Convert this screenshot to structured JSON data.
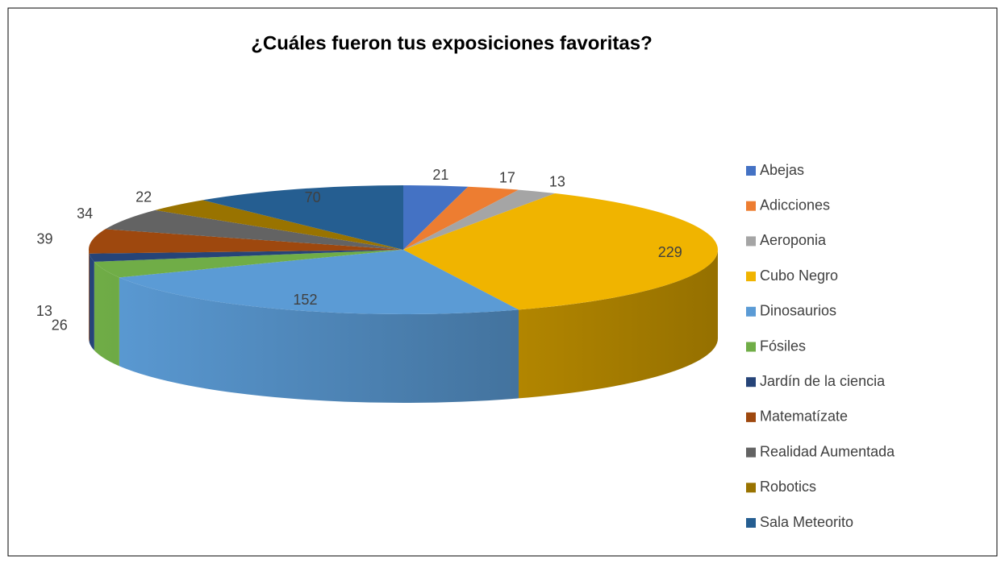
{
  "chart_data": {
    "type": "pie",
    "title": "¿Cuáles fueron tus exposiciones favoritas?",
    "categories": [
      "Abejas",
      "Adicciones",
      "Aeroponia",
      "Cubo Negro",
      "Dinosaurios",
      "Fósiles",
      "Jardín de la ciencia",
      "Matematízate",
      "Realidad Aumentada",
      "Robotics",
      "Sala Meteorito"
    ],
    "values": [
      21,
      17,
      13,
      229,
      152,
      26,
      13,
      39,
      34,
      22,
      70
    ],
    "colors": [
      "#4472c4",
      "#ed7d31",
      "#a5a5a5",
      "#f0b400",
      "#5b9bd5",
      "#70ad47",
      "#264478",
      "#9e480e",
      "#636363",
      "#997300",
      "#255e91"
    ],
    "legend": "right"
  }
}
